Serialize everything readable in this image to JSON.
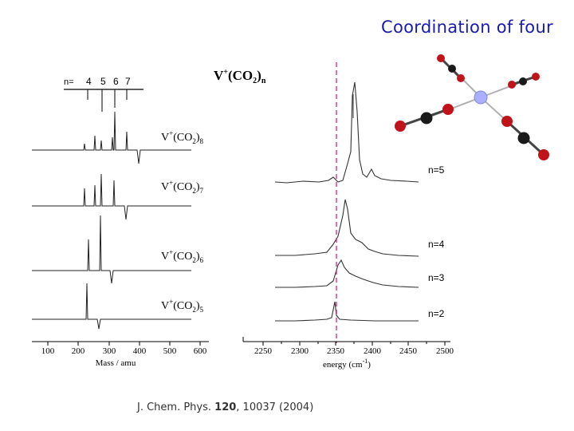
{
  "slide": {
    "title": "Coordination of four",
    "citation": {
      "journal": "J. Chem. Phys. ",
      "volume": "120",
      "rest": ", 10037 (2004)"
    }
  },
  "mass_spectrum": {
    "n_label": "n=",
    "peak_markers": [
      "4",
      "5",
      "6",
      "7"
    ],
    "traces": [
      {
        "label": "V",
        "sup": "+",
        "mid": "(CO",
        "sub_a": "2",
        "close": ")",
        "sub_b": "8"
      },
      {
        "label": "V",
        "sup": "+",
        "mid": "(CO",
        "sub_a": "2",
        "close": ")",
        "sub_b": "7"
      },
      {
        "label": "V",
        "sup": "+",
        "mid": "(CO",
        "sub_a": "2",
        "close": ")",
        "sub_b": "6"
      },
      {
        "label": "V",
        "sup": "+",
        "mid": "(CO",
        "sub_a": "2",
        "close": ")",
        "sub_b": "5"
      }
    ],
    "x_ticks": [
      "100",
      "200",
      "300",
      "400",
      "500",
      "600"
    ],
    "x_label": "Mass / amu"
  },
  "ir_spectrum": {
    "title": {
      "a": "V",
      "sup": "+",
      "b": "(CO",
      "sub_a": "2",
      "c": ")",
      "sub_b": "n"
    },
    "traces": [
      "n=5",
      "n=4",
      "n=3",
      "n=2"
    ],
    "x_ticks": [
      "2250",
      "2300",
      "2350",
      "2400",
      "2450",
      "2500"
    ],
    "x_label": "energy (cm",
    "x_label_sup": "-1",
    "x_label_close": ")",
    "reference_line_color": "#cc2288"
  },
  "colors": {
    "title": "#1a1ab0",
    "vanadium": "#aab0ff",
    "oxygen": "#c0141a",
    "carbon": "#1a1a1a"
  }
}
